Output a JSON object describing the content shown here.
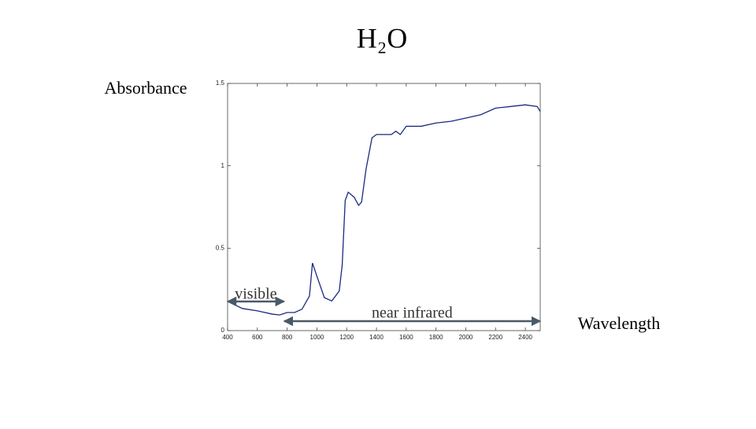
{
  "chart_data": {
    "type": "line",
    "title": "H₂O",
    "y_label": "Absorbance",
    "x_label": "Wavelength",
    "x": [
      400,
      500,
      600,
      700,
      750,
      800,
      850,
      900,
      950,
      970,
      1000,
      1050,
      1100,
      1150,
      1170,
      1190,
      1210,
      1250,
      1280,
      1300,
      1330,
      1370,
      1400,
      1500,
      1530,
      1560,
      1600,
      1700,
      1800,
      1900,
      2000,
      2100,
      2200,
      2300,
      2400,
      2480,
      2500
    ],
    "series": [
      {
        "name": "H₂O",
        "color": "#1a2a80",
        "values": [
          0.177,
          0.134,
          0.12,
          0.1,
          0.095,
          0.11,
          0.11,
          0.13,
          0.21,
          0.41,
          0.33,
          0.2,
          0.18,
          0.24,
          0.4,
          0.79,
          0.84,
          0.81,
          0.76,
          0.78,
          0.98,
          1.17,
          1.19,
          1.19,
          1.21,
          1.19,
          1.24,
          1.24,
          1.26,
          1.27,
          1.29,
          1.31,
          1.35,
          1.36,
          1.37,
          1.36,
          1.33
        ]
      }
    ],
    "xlim": [
      400,
      2500
    ],
    "ylim": [
      0,
      1.5
    ],
    "xticks": [
      400,
      600,
      800,
      1000,
      1200,
      1400,
      1600,
      1800,
      2000,
      2200,
      2400
    ],
    "yticks": [
      0,
      0.5,
      1,
      1.5
    ],
    "annotations": [
      {
        "text": "visible",
        "x": [
          400,
          780
        ]
      },
      {
        "text": "near infrared",
        "x": [
          780,
          2500
        ]
      }
    ]
  }
}
